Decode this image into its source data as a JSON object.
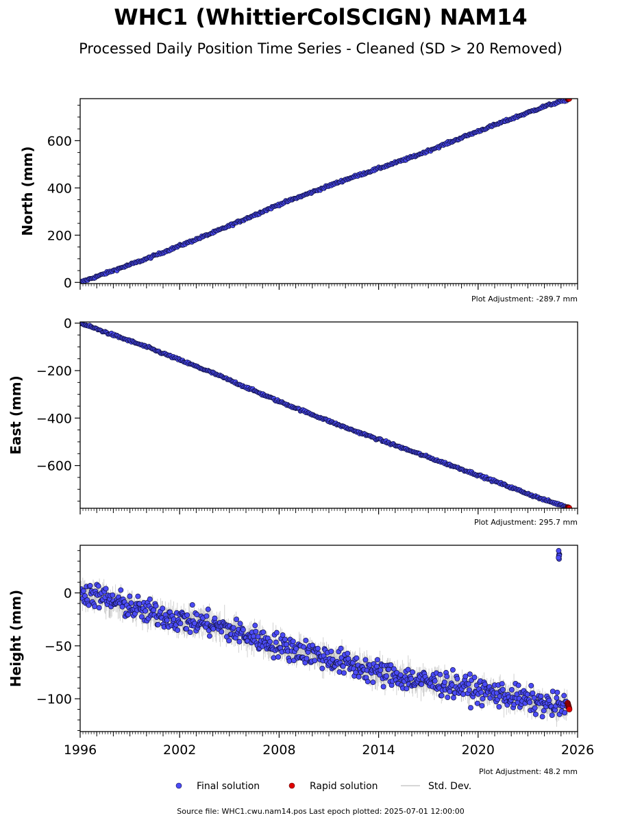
{
  "title": "WHC1 (WhittierColSCIGN) NAM14",
  "subtitle": "Processed Daily Position Time Series - Cleaned (SD > 20 Removed)",
  "legend": {
    "final": "Final solution",
    "rapid": "Rapid solution",
    "std": "Std. Dev."
  },
  "footer": "Source file: WHC1.cwu.nam14.pos  Last epoch plotted: 2025-07-01 12:00:00",
  "colors": {
    "final": "#4B4BF5",
    "final_edge": "#101040",
    "rapid": "#E00000",
    "std": "#b8b8b8"
  },
  "chart_data": [
    {
      "type": "scatter",
      "ylabel": "North (mm)",
      "adjustment": "Plot Adjustment: -289.7 mm",
      "xlim": [
        1996,
        2026
      ],
      "ylim": [
        -5,
        778
      ],
      "yticks": [
        0,
        200,
        400,
        600
      ],
      "ytick_labels": [
        "0",
        "200",
        "400",
        "600"
      ],
      "minor_ystep": 50,
      "show_xticklabels": false,
      "series": [
        {
          "name": "Final solution",
          "x": [
            1996.0,
            2000.0,
            2004.0,
            2008.0,
            2012.0,
            2016.0,
            2020.0,
            2024.0,
            2025.4
          ],
          "y": [
            0,
            100,
            210,
            330,
            435,
            530,
            640,
            745,
            775
          ]
        },
        {
          "name": "Rapid solution",
          "x": [
            2025.4,
            2025.5
          ],
          "y": [
            775,
            777
          ]
        }
      ]
    },
    {
      "type": "scatter",
      "ylabel": "East (mm)",
      "adjustment": "Plot Adjustment: 295.7 mm",
      "xlim": [
        1996,
        2026
      ],
      "ylim": [
        -780,
        5
      ],
      "yticks": [
        0,
        -200,
        -400,
        -600
      ],
      "ytick_labels": [
        "0",
        "−200",
        "−400",
        "−600"
      ],
      "minor_ystep": 50,
      "show_xticklabels": false,
      "series": [
        {
          "name": "Final solution",
          "x": [
            1996.0,
            2000.0,
            2004.0,
            2008.0,
            2012.0,
            2016.0,
            2020.0,
            2024.0,
            2025.4
          ],
          "y": [
            0,
            -100,
            -210,
            -330,
            -440,
            -540,
            -640,
            -745,
            -775
          ]
        },
        {
          "name": "Rapid solution",
          "x": [
            2025.4,
            2025.5
          ],
          "y": [
            -775,
            -778
          ]
        }
      ]
    },
    {
      "type": "scatter",
      "ylabel": "Height (mm)",
      "adjustment": "Plot Adjustment: 48.2 mm",
      "xlim": [
        1996,
        2026
      ],
      "ylim": [
        -131,
        45
      ],
      "yticks": [
        0,
        -50,
        -100
      ],
      "ytick_labels": [
        "0",
        "−50",
        "−100"
      ],
      "minor_ystep": 10,
      "show_xticklabels": true,
      "xticks": [
        1996,
        2002,
        2008,
        2014,
        2020,
        2026
      ],
      "xtick_labels": [
        "1996",
        "2002",
        "2008",
        "2014",
        "2020",
        "2026"
      ],
      "series": [
        {
          "name": "Final solution",
          "x": [
            1996.0,
            1998.0,
            2000.0,
            2002.0,
            2004.0,
            2006.0,
            2008.0,
            2010.0,
            2012.0,
            2014.0,
            2016.0,
            2018.0,
            2020.0,
            2022.0,
            2024.0,
            2025.4
          ],
          "y": [
            2,
            -8,
            -18,
            -25,
            -30,
            -40,
            -50,
            -57,
            -67,
            -75,
            -82,
            -86,
            -92,
            -98,
            -105,
            -108
          ]
        },
        {
          "name": "Rapid solution",
          "x": [
            2025.4,
            2025.5
          ],
          "y": [
            -104,
            -110
          ]
        },
        {
          "name": "Final solution (outliers)",
          "x": [
            2024.85,
            2024.9
          ],
          "y": [
            32,
            40
          ]
        }
      ]
    }
  ]
}
